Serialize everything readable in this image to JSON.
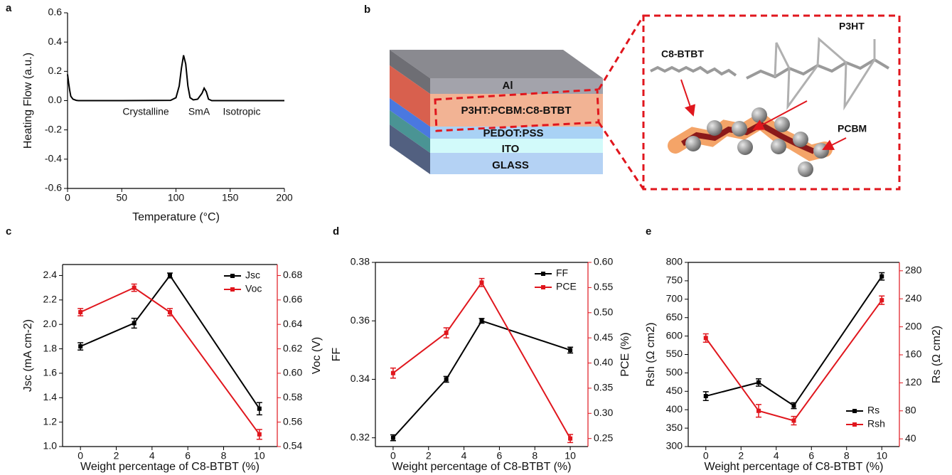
{
  "chart_data": [
    {
      "type": "line",
      "panel_label": "a",
      "x_label": "Temperature (°C)",
      "y_label": "Heating Flow (a.u.)",
      "x": [
        0,
        1,
        2,
        3,
        5,
        8,
        10,
        50,
        95,
        100,
        103,
        105,
        107,
        109,
        111,
        113,
        116,
        120,
        124,
        126,
        128,
        130,
        133,
        200
      ],
      "values": [
        0.18,
        0.12,
        0.07,
        0.03,
        0.01,
        0.002,
        0,
        0,
        0.002,
        0.02,
        0.1,
        0.22,
        0.31,
        0.25,
        0.1,
        0.02,
        0.005,
        0.01,
        0.05,
        0.085,
        0.06,
        0.01,
        0,
        0
      ],
      "color": "#000000",
      "xlim": [
        0,
        200
      ],
      "xticks": [
        0,
        50,
        100,
        150,
        200
      ],
      "ylim": [
        -0.6,
        0.6
      ],
      "yticks": [
        -0.6,
        -0.4,
        -0.2,
        {
          "value": 0,
          "label": "0.0"
        },
        0.2,
        0.4,
        0.6
      ],
      "annotations": [
        "Crystalline",
        "SmA",
        "Isotropic"
      ]
    },
    {
      "type": "line",
      "panel_label": "c",
      "x_label": "Weight percentage of C8-BTBT (%)",
      "y_label": "Jsc (mA cm-2)",
      "y2_label": "Voc (V)",
      "x": [
        0,
        3,
        5,
        10
      ],
      "series": [
        {
          "name": "Jsc",
          "color": "#000000",
          "values": [
            1.82,
            2.01,
            2.4,
            1.31
          ],
          "errors": [
            0.03,
            0.04,
            0.02,
            0.05
          ]
        },
        {
          "name": "Voc",
          "color": "#e0161d",
          "axis": "y2",
          "values": [
            0.65,
            0.67,
            0.65,
            0.55
          ],
          "errors": [
            0.003,
            0.003,
            0.003,
            0.004
          ]
        }
      ],
      "xlim": [
        -1,
        11
      ],
      "xticks": [
        0,
        2,
        4,
        6,
        8,
        10
      ],
      "ylim": [
        1.0,
        2.49
      ],
      "yticks": [
        {
          "value": 1,
          "label": "1.0"
        },
        1.2,
        1.4,
        1.6,
        1.8,
        {
          "value": 2,
          "label": "2.0"
        },
        2.2,
        2.4
      ],
      "y2lim": [
        0.54,
        0.689
      ],
      "y2ticks": [
        0.54,
        0.56,
        0.58,
        {
          "value": 0.6,
          "label": "0.60"
        },
        0.62,
        0.64,
        0.66,
        0.68
      ],
      "legend": "upper right"
    },
    {
      "type": "line",
      "panel_label": "d",
      "x_label": "Weight percentage of C8-BTBT (%)",
      "y_label": "FF",
      "y2_label": "PCE (%)",
      "x": [
        0,
        3,
        5,
        10
      ],
      "series": [
        {
          "name": "FF",
          "color": "#000000",
          "values": [
            0.32,
            0.34,
            0.36,
            0.35
          ],
          "errors": [
            0.001,
            0.001,
            0.0008,
            0.001
          ]
        },
        {
          "name": "PCE",
          "color": "#e0161d",
          "axis": "y2",
          "values": [
            0.38,
            0.46,
            0.56,
            0.25
          ],
          "errors": [
            0.01,
            0.01,
            0.008,
            0.008
          ]
        }
      ],
      "xlim": [
        -1,
        11
      ],
      "xticks": [
        0,
        2,
        4,
        6,
        8,
        10
      ],
      "ylim": [
        0.317,
        0.38
      ],
      "yticks": [
        0.32,
        0.34,
        0.36,
        0.38
      ],
      "y2lim": [
        0.234,
        0.6
      ],
      "y2ticks": [
        0.25,
        {
          "value": 0.3,
          "label": "0.30"
        },
        0.35,
        {
          "value": 0.4,
          "label": "0.40"
        },
        0.45,
        {
          "value": 0.5,
          "label": "0.50"
        },
        0.55,
        {
          "value": 0.6,
          "label": "0.60"
        }
      ],
      "legend": "upper right"
    },
    {
      "type": "line",
      "panel_label": "e",
      "x_label": "Weight percentage of C8-BTBT (%)",
      "y_label": "Rsh (Ω cm2)",
      "y2_label": "Rs (Ω cm2)",
      "x": [
        0,
        3,
        5,
        10
      ],
      "series": [
        {
          "name": "Rs",
          "color": "#000000",
          "values": [
            437,
            474,
            411,
            762
          ],
          "errors": [
            12,
            10,
            8,
            10
          ]
        },
        {
          "name": "Rsh",
          "color": "#e0161d",
          "axis": "y2",
          "values": [
            184,
            80,
            66,
            238
          ],
          "errors": [
            6,
            9,
            6,
            6
          ]
        }
      ],
      "xlim": [
        -1,
        11
      ],
      "xticks": [
        0,
        2,
        4,
        6,
        8,
        10
      ],
      "ylim": [
        300,
        800
      ],
      "yticks": [
        300,
        350,
        400,
        450,
        500,
        550,
        600,
        650,
        700,
        750,
        800
      ],
      "y2lim": [
        29,
        292
      ],
      "y2ticks": [
        40,
        80,
        120,
        160,
        200,
        240,
        280
      ],
      "legend": "lower right"
    }
  ],
  "diagram": {
    "panel_label": "b",
    "layers": [
      "Al",
      "P3HT:PCBM:C8-BTBT",
      "PEDOT:PSS",
      "ITO",
      "GLASS"
    ],
    "molecules": [
      "C8-BTBT",
      "P3HT",
      "PCBM"
    ]
  }
}
